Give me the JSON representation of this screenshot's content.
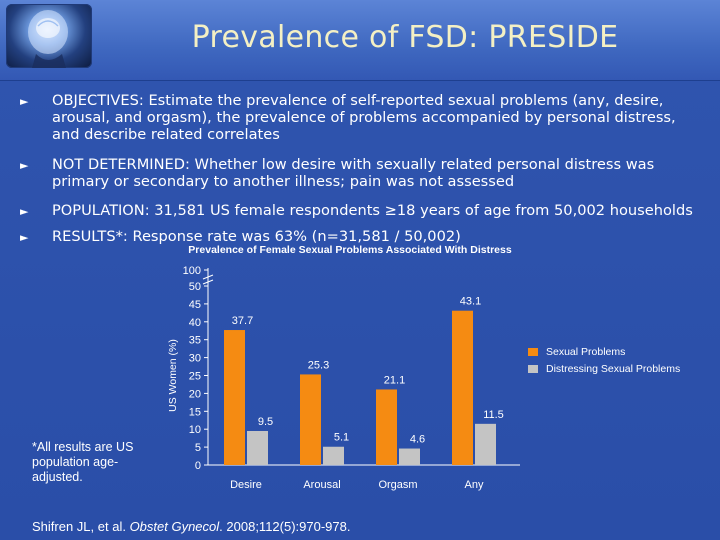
{
  "header": {
    "title": "Prevalence of FSD: PRESIDE",
    "logo_icon": "brain-head-icon"
  },
  "bullets": [
    {
      "text": "OBJECTIVES: Estimate the prevalence of self-reported sexual problems (any, desire, arousal, and orgasm), the prevalence of problems accompanied by personal distress, and describe related correlates"
    },
    {
      "text": "NOT DETERMINED: Whether low desire with sexually related personal distress was primary or secondary to another illness; pain was not assessed"
    },
    {
      "text": "POPULATION: 31,581 US female respondents ≥18 years of age from 50,002 households"
    },
    {
      "text": "RESULTS*: Response rate was 63% (n=31,581 / 50,002)"
    }
  ],
  "bullet_icon": "triangle-right-icon",
  "chart_data": {
    "type": "bar",
    "title": "Prevalence of Female Sexual Problems Associated With Distress",
    "ylabel": "US Women (%)",
    "xlabel": "",
    "categories": [
      "Desire",
      "Arousal",
      "Orgasm",
      "Any"
    ],
    "series": [
      {
        "name": "Sexual Problems",
        "color": "#f58b12",
        "values": [
          37.7,
          25.3,
          21.1,
          43.1
        ]
      },
      {
        "name": "Distressing Sexual Problems",
        "color": "#c4c4c4",
        "values": [
          9.5,
          5.1,
          4.6,
          11.5
        ]
      }
    ],
    "ylim": [
      0,
      50
    ],
    "y_break": true,
    "yticks": [
      0,
      5,
      10,
      15,
      20,
      25,
      30,
      35,
      40,
      45,
      50,
      100
    ],
    "legend_position": "right",
    "grid": false
  },
  "footnote": "*All results are US population age-adjusted.",
  "citation": {
    "authors": "Shifren JL, et al. ",
    "journal": "Obstet Gynecol",
    "details": ". 2008;112(5):970-978."
  }
}
